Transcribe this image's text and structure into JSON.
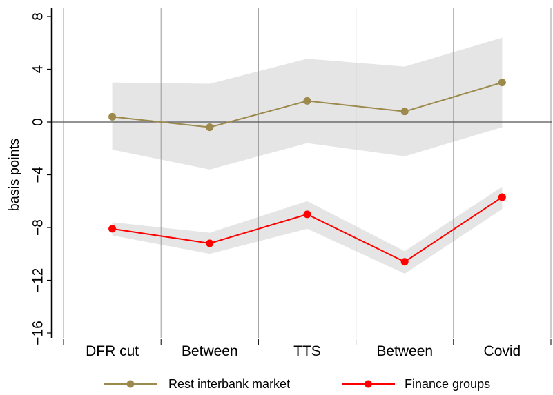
{
  "chart_data": {
    "type": "line",
    "categories": [
      "DFR cut",
      "Between",
      "TTS",
      "Between",
      "Covid"
    ],
    "ylabel": "basis points",
    "xlabel": "",
    "ylim": [
      -17,
      8.5
    ],
    "yticks": [
      8,
      4,
      0,
      -4,
      -8,
      -12,
      -16
    ],
    "ytick_labels": [
      "8",
      "4",
      "0",
      "−4",
      "−8",
      "−12",
      "−16"
    ],
    "grid": "vertical lines separating periods",
    "zero_line": true,
    "legend_position": "bottom",
    "series": [
      {
        "name": "Rest interbank market",
        "color": "#9C8A4C",
        "values": [
          0.4,
          -0.4,
          1.6,
          0.8,
          3.0
        ],
        "ci_lower": [
          -2.1,
          -3.6,
          -1.6,
          -2.6,
          -0.4
        ],
        "ci_upper": [
          3.0,
          2.9,
          4.8,
          4.2,
          6.4
        ]
      },
      {
        "name": "Finance groups",
        "color": "#FF0000",
        "values": [
          -8.1,
          -9.2,
          -7.0,
          -10.6,
          -5.7
        ],
        "ci_lower": [
          -8.6,
          -10.0,
          -8.1,
          -11.5,
          -6.6
        ],
        "ci_upper": [
          -7.6,
          -8.4,
          -6.0,
          -9.8,
          -4.9
        ]
      }
    ],
    "band_color": "#E5E5E5"
  }
}
